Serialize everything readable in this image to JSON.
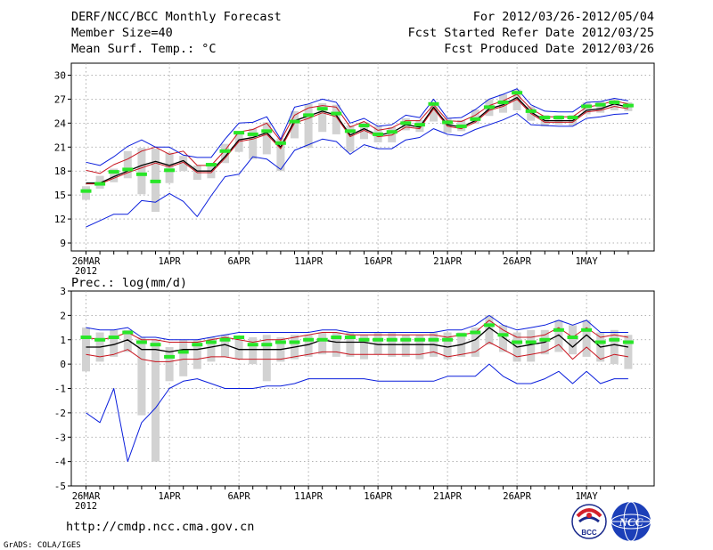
{
  "header": {
    "title": "DERF/NCC/BCC Monthly Forecast",
    "member_size": "Member Size=40",
    "variable": "Mean Surf. Temp.: °C",
    "period": "For 2012/03/26-2012/05/04",
    "started": "Fcst Started Refer Date 2012/03/25",
    "produced": "Fcst Produced Date 2012/03/26"
  },
  "footer": {
    "url": "http://cmdp.ncc.cma.gov.cn",
    "grads": "GrADS: COLA/IGES",
    "logo_bcc": "BCC",
    "logo_ncc": "NCC"
  },
  "colors": {
    "box": "#d2d2d2",
    "mean": "#000000",
    "ens": "#c8141e",
    "extreme": "#0a1edc",
    "obs": "#28e628",
    "grid": "#9a9a9a"
  },
  "chart_data": [
    {
      "type": "line",
      "title": "Mean Surf. Temp.: °C",
      "xlabel": "",
      "ylabel": "",
      "ylim": [
        8,
        31.5
      ],
      "yticks": [
        9,
        12,
        15,
        18,
        21,
        24,
        27,
        30
      ],
      "x_tick_labels": [
        "26MAR",
        "1APR",
        "6APR",
        "11APR",
        "16APR",
        "21APR",
        "26APR",
        "1MAY"
      ],
      "x_tick_days": [
        1,
        7,
        12,
        17,
        22,
        27,
        32,
        37
      ],
      "year_label": "2012",
      "n_days": 40,
      "series": [
        {
          "name": "ensemble mean",
          "values": [
            16.5,
            16.5,
            17.3,
            18.0,
            18.7,
            19.2,
            18.7,
            19.3,
            18.0,
            18.0,
            19.8,
            21.9,
            22.2,
            22.8,
            21.0,
            24.3,
            24.9,
            25.5,
            25.0,
            22.5,
            23.3,
            22.5,
            22.8,
            23.8,
            23.5,
            26.0,
            23.8,
            23.5,
            24.3,
            25.8,
            26.3,
            27.2,
            25.4,
            24.3,
            24.3,
            24.3,
            25.6,
            25.8,
            26.4,
            26.0
          ]
        },
        {
          "name": "upper ensemble",
          "values": [
            18.1,
            17.7,
            18.8,
            19.5,
            20.5,
            21.0,
            20.1,
            20.5,
            18.7,
            18.7,
            20.6,
            22.9,
            23.2,
            24.0,
            21.8,
            25.0,
            25.9,
            26.2,
            26.0,
            23.5,
            24.2,
            23.1,
            23.4,
            24.3,
            24.3,
            26.3,
            24.3,
            24.2,
            25.0,
            26.2,
            26.8,
            27.6,
            25.8,
            24.8,
            24.8,
            24.8,
            26.0,
            26.3,
            26.8,
            26.4
          ]
        },
        {
          "name": "lower ensemble",
          "values": [
            16.4,
            16.4,
            17.1,
            17.8,
            18.4,
            19.0,
            18.5,
            19.1,
            17.8,
            17.8,
            19.6,
            21.7,
            22.0,
            22.6,
            20.8,
            24.0,
            24.6,
            25.3,
            24.8,
            22.3,
            23.1,
            22.3,
            22.5,
            23.5,
            23.3,
            25.8,
            23.6,
            23.3,
            24.1,
            25.6,
            26.1,
            27.0,
            25.2,
            24.1,
            24.1,
            24.1,
            25.4,
            25.6,
            26.1,
            25.8
          ]
        },
        {
          "name": "maximum",
          "values": [
            19.1,
            18.7,
            19.8,
            21.1,
            21.9,
            21.0,
            21.0,
            20.0,
            19.7,
            19.7,
            22.0,
            24.0,
            24.1,
            24.8,
            22.0,
            26.0,
            26.4,
            27.0,
            26.6,
            24.0,
            24.6,
            23.6,
            23.8,
            25.0,
            24.7,
            27.0,
            24.6,
            24.7,
            25.7,
            27.0,
            27.6,
            28.3,
            26.3,
            25.5,
            25.4,
            25.4,
            26.6,
            26.7,
            27.1,
            26.8
          ]
        },
        {
          "name": "minimum",
          "values": [
            11.0,
            11.8,
            12.6,
            12.6,
            14.3,
            14.1,
            15.2,
            14.2,
            12.3,
            14.9,
            17.3,
            17.6,
            19.8,
            19.5,
            18.2,
            20.6,
            21.3,
            22.0,
            21.7,
            20.1,
            21.3,
            20.8,
            20.8,
            21.9,
            22.2,
            23.3,
            22.6,
            22.4,
            23.2,
            23.8,
            24.4,
            25.2,
            23.8,
            23.7,
            23.6,
            23.6,
            24.6,
            24.8,
            25.1,
            25.2
          ]
        },
        {
          "name": "observed",
          "values": [
            15.5,
            16.4,
            17.9,
            18.2,
            17.6,
            16.7,
            18.1,
            null,
            null,
            18.8,
            20.5,
            22.8,
            22.6,
            23.0,
            21.5,
            24.2,
            25.0,
            25.8,
            25.2,
            23.0,
            23.7,
            22.6,
            22.9,
            24.0,
            23.8,
            26.4,
            24.1,
            23.6,
            24.5,
            26.0,
            26.6,
            27.8,
            25.5,
            24.7,
            24.7,
            24.7,
            26.1,
            26.3,
            26.6,
            26.2
          ]
        }
      ],
      "boxes": [
        [
          14.4,
          16.1
        ],
        [
          15.8,
          17.4
        ],
        [
          16.6,
          18.3
        ],
        [
          17.1,
          20.5
        ],
        [
          15.1,
          20.9
        ],
        [
          12.9,
          20.8
        ],
        [
          16.5,
          20.3
        ],
        [
          18.0,
          19.9
        ],
        [
          16.9,
          18.7
        ],
        [
          17.1,
          18.8
        ],
        [
          19.0,
          21.4
        ],
        [
          20.4,
          22.9
        ],
        [
          19.5,
          23.3
        ],
        [
          20.1,
          24.1
        ],
        [
          18.0,
          22.1
        ],
        [
          22.1,
          25.5
        ],
        [
          20.9,
          26.4
        ],
        [
          22.9,
          26.5
        ],
        [
          22.6,
          26.3
        ],
        [
          20.4,
          23.7
        ],
        [
          22.0,
          24.1
        ],
        [
          21.6,
          23.6
        ],
        [
          21.6,
          23.5
        ],
        [
          23.1,
          24.6
        ],
        [
          22.9,
          24.4
        ],
        [
          24.2,
          26.6
        ],
        [
          22.8,
          24.6
        ],
        [
          23.0,
          24.4
        ],
        [
          23.9,
          25.7
        ],
        [
          24.9,
          27.0
        ],
        [
          25.3,
          27.6
        ],
        [
          25.6,
          28.2
        ],
        [
          24.3,
          26.1
        ],
        [
          23.6,
          25.0
        ],
        [
          23.8,
          25.0
        ],
        [
          23.7,
          25.0
        ],
        [
          25.1,
          26.6
        ],
        [
          25.3,
          26.7
        ],
        [
          25.6,
          27.0
        ],
        [
          25.5,
          26.6
        ]
      ]
    },
    {
      "type": "line",
      "title": "Prec.: log(mm/d)",
      "xlabel": "",
      "ylabel": "",
      "ylim": [
        -5,
        3
      ],
      "yticks": [
        -5,
        -4,
        -3,
        -2,
        -1,
        0,
        1,
        2,
        3
      ],
      "x_tick_labels": [
        "26MAR",
        "1APR",
        "6APR",
        "11APR",
        "16APR",
        "21APR",
        "26APR",
        "1MAY"
      ],
      "x_tick_days": [
        1,
        7,
        12,
        17,
        22,
        27,
        32,
        37
      ],
      "year_label": "2012",
      "n_days": 40,
      "series": [
        {
          "name": "ensemble mean",
          "values": [
            0.7,
            0.7,
            0.8,
            1.0,
            0.6,
            0.6,
            0.5,
            0.6,
            0.6,
            0.7,
            0.8,
            0.6,
            0.6,
            0.6,
            0.6,
            0.7,
            0.8,
            1.0,
            0.9,
            0.9,
            0.9,
            0.8,
            0.8,
            0.8,
            0.8,
            0.8,
            0.7,
            0.8,
            1.0,
            1.5,
            1.1,
            0.7,
            0.8,
            0.9,
            1.2,
            0.7,
            1.2,
            0.7,
            0.8,
            0.7
          ]
        },
        {
          "name": "upper ensemble",
          "values": [
            1.1,
            1.0,
            1.1,
            1.3,
            1.0,
            1.0,
            0.9,
            0.9,
            0.9,
            1.0,
            1.1,
            1.0,
            0.9,
            1.0,
            1.0,
            1.1,
            1.2,
            1.3,
            1.3,
            1.2,
            1.2,
            1.2,
            1.2,
            1.2,
            1.2,
            1.2,
            1.1,
            1.2,
            1.3,
            1.8,
            1.4,
            1.1,
            1.1,
            1.2,
            1.5,
            1.1,
            1.5,
            1.1,
            1.2,
            1.1
          ]
        },
        {
          "name": "lower ensemble",
          "values": [
            0.4,
            0.3,
            0.4,
            0.6,
            0.2,
            0.1,
            0.1,
            0.2,
            0.2,
            0.3,
            0.3,
            0.2,
            0.2,
            0.2,
            0.2,
            0.3,
            0.4,
            0.5,
            0.5,
            0.4,
            0.4,
            0.4,
            0.4,
            0.4,
            0.4,
            0.5,
            0.3,
            0.4,
            0.5,
            0.9,
            0.6,
            0.3,
            0.4,
            0.5,
            0.8,
            0.2,
            0.7,
            0.2,
            0.4,
            0.3
          ]
        },
        {
          "name": "maximum",
          "values": [
            1.5,
            1.4,
            1.4,
            1.5,
            1.1,
            1.1,
            1.0,
            1.0,
            1.0,
            1.1,
            1.2,
            1.3,
            1.3,
            1.3,
            1.3,
            1.3,
            1.3,
            1.4,
            1.4,
            1.3,
            1.3,
            1.3,
            1.3,
            1.3,
            1.3,
            1.3,
            1.4,
            1.4,
            1.6,
            2.0,
            1.6,
            1.4,
            1.5,
            1.6,
            1.8,
            1.6,
            1.8,
            1.3,
            1.3,
            1.3
          ]
        },
        {
          "name": "minimum",
          "values": [
            -2.0,
            -2.4,
            -1.0,
            -4.0,
            -2.4,
            -1.8,
            -1.0,
            -0.7,
            -0.6,
            -0.8,
            -1.0,
            -1.0,
            -1.0,
            -0.9,
            -0.9,
            -0.8,
            -0.6,
            -0.6,
            -0.6,
            -0.6,
            -0.6,
            -0.7,
            -0.7,
            -0.7,
            -0.7,
            -0.7,
            -0.5,
            -0.5,
            -0.5,
            0.0,
            -0.5,
            -0.8,
            -0.8,
            -0.6,
            -0.3,
            -0.8,
            -0.3,
            -0.8,
            -0.6,
            -0.6
          ]
        },
        {
          "name": "observed",
          "values": [
            1.1,
            1.0,
            1.1,
            1.3,
            0.9,
            0.8,
            0.3,
            0.5,
            0.8,
            0.9,
            1.0,
            1.1,
            0.8,
            0.8,
            0.9,
            0.9,
            1.0,
            1.0,
            1.1,
            1.1,
            1.0,
            1.0,
            1.0,
            1.0,
            1.0,
            1.0,
            1.0,
            1.2,
            1.3,
            1.6,
            1.2,
            0.9,
            0.9,
            1.0,
            1.4,
            1.1,
            1.4,
            0.9,
            1.0,
            0.9
          ]
        }
      ],
      "boxes": [
        [
          -0.3,
          1.5
        ],
        [
          0.1,
          1.3
        ],
        [
          0.3,
          1.4
        ],
        [
          0.5,
          1.4
        ],
        [
          -2.1,
          1.1
        ],
        [
          -4.0,
          1.0
        ],
        [
          -0.7,
          0.7
        ],
        [
          -0.5,
          1.0
        ],
        [
          -0.2,
          1.0
        ],
        [
          0.1,
          1.1
        ],
        [
          0.3,
          1.2
        ],
        [
          0.2,
          1.0
        ],
        [
          0.0,
          1.1
        ],
        [
          -0.7,
          1.2
        ],
        [
          0.1,
          1.1
        ],
        [
          0.2,
          1.2
        ],
        [
          0.3,
          1.2
        ],
        [
          0.4,
          1.3
        ],
        [
          0.3,
          1.3
        ],
        [
          0.3,
          1.3
        ],
        [
          0.2,
          1.2
        ],
        [
          0.4,
          1.3
        ],
        [
          0.3,
          1.3
        ],
        [
          0.3,
          1.2
        ],
        [
          0.2,
          1.2
        ],
        [
          0.3,
          1.3
        ],
        [
          0.2,
          1.3
        ],
        [
          0.3,
          1.3
        ],
        [
          0.3,
          1.5
        ],
        [
          0.8,
          2.0
        ],
        [
          0.5,
          1.6
        ],
        [
          0.1,
          1.3
        ],
        [
          0.1,
          1.4
        ],
        [
          0.4,
          1.4
        ],
        [
          0.5,
          1.8
        ],
        [
          0.4,
          1.6
        ],
        [
          0.3,
          1.8
        ],
        [
          0.1,
          1.3
        ],
        [
          0.0,
          1.4
        ],
        [
          -0.2,
          1.2
        ]
      ]
    }
  ]
}
